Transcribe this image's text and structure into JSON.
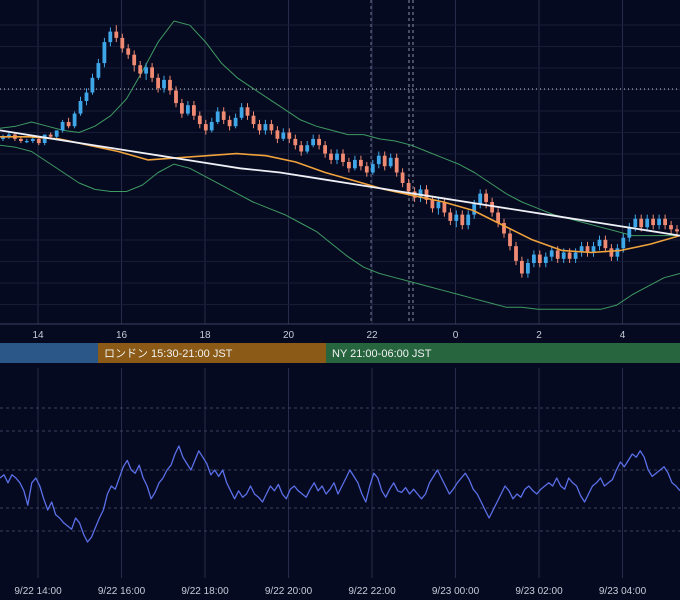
{
  "chart_data": {
    "type": "line",
    "price_panel": {
      "x_ticks": [
        "14",
        "16",
        "18",
        "20",
        "22",
        "0",
        "2",
        "4"
      ],
      "candles": [
        [
          0.07,
          0.06,
          0.08,
          0.05,
          true
        ],
        [
          0.07,
          0.08,
          0.09,
          0.06,
          true
        ],
        [
          0.08,
          0.06,
          0.09,
          0.05,
          false
        ],
        [
          0.06,
          0.05,
          0.07,
          0.04,
          false
        ],
        [
          0.05,
          0.05,
          0.06,
          0.04,
          true
        ],
        [
          0.05,
          0.06,
          0.07,
          0.04,
          true
        ],
        [
          0.06,
          0.04,
          0.07,
          0.03,
          false
        ],
        [
          0.04,
          0.08,
          0.08,
          0.03,
          true
        ],
        [
          0.08,
          0.07,
          0.09,
          0.06,
          false
        ],
        [
          0.07,
          0.1,
          0.1,
          0.06,
          true
        ],
        [
          0.1,
          0.14,
          0.15,
          0.09,
          true
        ],
        [
          0.14,
          0.12,
          0.16,
          0.11,
          false
        ],
        [
          0.12,
          0.18,
          0.19,
          0.11,
          true
        ],
        [
          0.18,
          0.24,
          0.26,
          0.17,
          true
        ],
        [
          0.24,
          0.28,
          0.3,
          0.22,
          true
        ],
        [
          0.28,
          0.35,
          0.37,
          0.27,
          true
        ],
        [
          0.35,
          0.42,
          0.44,
          0.34,
          true
        ],
        [
          0.42,
          0.52,
          0.54,
          0.4,
          true
        ],
        [
          0.52,
          0.57,
          0.59,
          0.5,
          true
        ],
        [
          0.57,
          0.54,
          0.6,
          0.52,
          false
        ],
        [
          0.54,
          0.49,
          0.56,
          0.47,
          false
        ],
        [
          0.49,
          0.46,
          0.51,
          0.44,
          false
        ],
        [
          0.46,
          0.41,
          0.48,
          0.38,
          false
        ],
        [
          0.41,
          0.37,
          0.43,
          0.35,
          false
        ],
        [
          0.37,
          0.4,
          0.42,
          0.34,
          true
        ],
        [
          0.4,
          0.35,
          0.42,
          0.33,
          false
        ],
        [
          0.35,
          0.3,
          0.37,
          0.28,
          false
        ],
        [
          0.3,
          0.34,
          0.36,
          0.28,
          true
        ],
        [
          0.34,
          0.29,
          0.36,
          0.27,
          false
        ],
        [
          0.29,
          0.23,
          0.31,
          0.21,
          false
        ],
        [
          0.23,
          0.18,
          0.25,
          0.16,
          false
        ],
        [
          0.18,
          0.22,
          0.24,
          0.17,
          true
        ],
        [
          0.22,
          0.17,
          0.24,
          0.15,
          false
        ],
        [
          0.17,
          0.13,
          0.19,
          0.11,
          false
        ],
        [
          0.13,
          0.1,
          0.15,
          0.08,
          false
        ],
        [
          0.1,
          0.14,
          0.16,
          0.09,
          true
        ],
        [
          0.14,
          0.19,
          0.21,
          0.13,
          true
        ],
        [
          0.19,
          0.15,
          0.21,
          0.13,
          false
        ],
        [
          0.15,
          0.12,
          0.17,
          0.1,
          false
        ],
        [
          0.12,
          0.16,
          0.18,
          0.11,
          true
        ],
        [
          0.16,
          0.21,
          0.23,
          0.15,
          true
        ],
        [
          0.21,
          0.17,
          0.23,
          0.15,
          false
        ],
        [
          0.17,
          0.13,
          0.19,
          0.11,
          false
        ],
        [
          0.13,
          0.1,
          0.15,
          0.08,
          false
        ],
        [
          0.1,
          0.13,
          0.15,
          0.08,
          true
        ],
        [
          0.13,
          0.1,
          0.15,
          0.08,
          false
        ],
        [
          0.1,
          0.06,
          0.12,
          0.04,
          false
        ],
        [
          0.06,
          0.09,
          0.11,
          0.05,
          true
        ],
        [
          0.09,
          0.06,
          0.11,
          0.04,
          false
        ],
        [
          0.06,
          0.03,
          0.08,
          0.01,
          false
        ],
        [
          0.03,
          0.0,
          0.05,
          -0.02,
          false
        ],
        [
          0.0,
          0.03,
          0.05,
          -0.01,
          true
        ],
        [
          0.03,
          0.06,
          0.08,
          0.02,
          true
        ],
        [
          0.06,
          0.03,
          0.08,
          0.01,
          false
        ],
        [
          0.03,
          -0.01,
          0.05,
          -0.03,
          false
        ],
        [
          -0.01,
          -0.04,
          0.01,
          -0.06,
          false
        ],
        [
          -0.04,
          -0.01,
          0.01,
          -0.06,
          true
        ],
        [
          -0.01,
          -0.05,
          0.01,
          -0.07,
          false
        ],
        [
          -0.05,
          -0.08,
          -0.03,
          -0.1,
          false
        ],
        [
          -0.08,
          -0.04,
          -0.02,
          -0.09,
          true
        ],
        [
          -0.04,
          -0.07,
          -0.02,
          -0.09,
          false
        ],
        [
          -0.07,
          -0.1,
          -0.05,
          -0.12,
          false
        ],
        [
          -0.1,
          -0.06,
          -0.04,
          -0.11,
          true
        ],
        [
          -0.06,
          -0.02,
          0.0,
          -0.08,
          true
        ],
        [
          -0.02,
          -0.07,
          0.0,
          -0.09,
          false
        ],
        [
          -0.07,
          -0.03,
          -0.01,
          -0.08,
          true
        ],
        [
          -0.03,
          -0.1,
          -0.01,
          -0.12,
          false
        ],
        [
          -0.1,
          -0.15,
          -0.08,
          -0.17,
          false
        ],
        [
          -0.15,
          -0.19,
          -0.13,
          -0.21,
          false
        ],
        [
          -0.19,
          -0.22,
          -0.17,
          -0.24,
          false
        ],
        [
          -0.22,
          -0.18,
          -0.16,
          -0.24,
          true
        ],
        [
          -0.18,
          -0.23,
          -0.16,
          -0.25,
          false
        ],
        [
          -0.23,
          -0.27,
          -0.21,
          -0.29,
          false
        ],
        [
          -0.27,
          -0.24,
          -0.22,
          -0.3,
          true
        ],
        [
          -0.24,
          -0.29,
          -0.22,
          -0.31,
          false
        ],
        [
          -0.29,
          -0.33,
          -0.27,
          -0.35,
          false
        ],
        [
          -0.33,
          -0.3,
          -0.28,
          -0.36,
          true
        ],
        [
          -0.3,
          -0.35,
          -0.28,
          -0.37,
          false
        ],
        [
          -0.35,
          -0.3,
          -0.28,
          -0.37,
          true
        ],
        [
          -0.3,
          -0.25,
          -0.23,
          -0.32,
          true
        ],
        [
          -0.25,
          -0.2,
          -0.18,
          -0.27,
          true
        ],
        [
          -0.2,
          -0.24,
          -0.18,
          -0.27,
          false
        ],
        [
          -0.24,
          -0.29,
          -0.22,
          -0.31,
          false
        ],
        [
          -0.29,
          -0.34,
          -0.27,
          -0.36,
          false
        ],
        [
          -0.34,
          -0.39,
          -0.32,
          -0.41,
          false
        ],
        [
          -0.39,
          -0.45,
          -0.37,
          -0.47,
          false
        ],
        [
          -0.45,
          -0.52,
          -0.43,
          -0.54,
          false
        ],
        [
          -0.52,
          -0.58,
          -0.5,
          -0.6,
          false
        ],
        [
          -0.58,
          -0.53,
          -0.51,
          -0.6,
          true
        ],
        [
          -0.53,
          -0.49,
          -0.47,
          -0.55,
          true
        ],
        [
          -0.49,
          -0.53,
          -0.47,
          -0.55,
          false
        ],
        [
          -0.53,
          -0.5,
          -0.48,
          -0.55,
          true
        ],
        [
          -0.5,
          -0.47,
          -0.45,
          -0.52,
          true
        ],
        [
          -0.47,
          -0.51,
          -0.45,
          -0.53,
          false
        ],
        [
          -0.51,
          -0.48,
          -0.46,
          -0.53,
          true
        ],
        [
          -0.48,
          -0.51,
          -0.46,
          -0.53,
          false
        ],
        [
          -0.51,
          -0.48,
          -0.46,
          -0.53,
          true
        ],
        [
          -0.48,
          -0.45,
          -0.43,
          -0.5,
          true
        ],
        [
          -0.45,
          -0.48,
          -0.43,
          -0.5,
          false
        ],
        [
          -0.48,
          -0.45,
          -0.43,
          -0.5,
          true
        ],
        [
          -0.45,
          -0.42,
          -0.4,
          -0.47,
          true
        ],
        [
          -0.42,
          -0.46,
          -0.4,
          -0.48,
          false
        ],
        [
          -0.46,
          -0.5,
          -0.44,
          -0.52,
          false
        ],
        [
          -0.5,
          -0.46,
          -0.44,
          -0.52,
          true
        ],
        [
          -0.46,
          -0.41,
          -0.39,
          -0.48,
          true
        ],
        [
          -0.41,
          -0.36,
          -0.34,
          -0.43,
          true
        ],
        [
          -0.36,
          -0.32,
          -0.3,
          -0.38,
          true
        ],
        [
          -0.32,
          -0.36,
          -0.3,
          -0.38,
          false
        ],
        [
          -0.36,
          -0.32,
          -0.3,
          -0.38,
          true
        ],
        [
          -0.32,
          -0.35,
          -0.3,
          -0.37,
          false
        ],
        [
          -0.35,
          -0.32,
          -0.3,
          -0.37,
          true
        ],
        [
          -0.32,
          -0.35,
          -0.3,
          -0.37,
          false
        ],
        [
          -0.35,
          -0.37,
          -0.33,
          -0.39,
          false
        ],
        [
          -0.37,
          -0.38,
          -0.35,
          -0.4,
          false
        ]
      ],
      "sma_white": [
        0.1,
        0.07,
        0.04,
        0.01,
        -0.02,
        -0.05,
        -0.08,
        -0.1,
        -0.13,
        -0.16,
        -0.19,
        -0.22,
        -0.25,
        -0.28,
        -0.31,
        -0.34,
        -0.37,
        -0.4
      ],
      "sma_orange": [
        0.07,
        0.07,
        0.06,
        0.03,
        0.0,
        -0.04,
        -0.03,
        -0.02,
        -0.01,
        -0.02,
        -0.05,
        -0.1,
        -0.14,
        -0.18,
        -0.21,
        -0.24,
        -0.28,
        -0.35,
        -0.42,
        -0.47,
        -0.48,
        -0.47,
        -0.44,
        -0.4
      ],
      "bb_upper": [
        0.11,
        0.12,
        0.14,
        0.12,
        0.1,
        0.09,
        0.12,
        0.17,
        0.25,
        0.38,
        0.52,
        0.62,
        0.6,
        0.52,
        0.42,
        0.35,
        0.3,
        0.25,
        0.2,
        0.15,
        0.12,
        0.1,
        0.08,
        0.08,
        0.06,
        0.05,
        0.03,
        0.0,
        -0.03,
        -0.06,
        -0.1,
        -0.15,
        -0.2,
        -0.24,
        -0.27,
        -0.3,
        -0.32,
        -0.34,
        -0.36,
        -0.38,
        -0.4,
        -0.4,
        -0.4,
        -0.4
      ],
      "bb_lower": [
        0.03,
        0.02,
        0.0,
        -0.05,
        -0.1,
        -0.15,
        -0.18,
        -0.19,
        -0.19,
        -0.16,
        -0.1,
        -0.06,
        -0.08,
        -0.12,
        -0.16,
        -0.2,
        -0.24,
        -0.27,
        -0.3,
        -0.34,
        -0.38,
        -0.44,
        -0.5,
        -0.55,
        -0.58,
        -0.6,
        -0.62,
        -0.64,
        -0.66,
        -0.68,
        -0.7,
        -0.72,
        -0.74,
        -0.74,
        -0.75,
        -0.75,
        -0.75,
        -0.75,
        -0.75,
        -0.73,
        -0.68,
        -0.64,
        -0.6,
        -0.58
      ]
    },
    "session_bar": [
      {
        "label": "",
        "color": "#2a5788"
      },
      {
        "label": "ロンドン 15:30-21:00 JST",
        "color": "#8a5a16"
      },
      {
        "label": "NY 21:00-06:00 JST",
        "color": "#27653f"
      }
    ],
    "oscillator": {
      "x_ticks": [
        "9/22 14:00",
        "9/22 16:00",
        "9/22 18:00",
        "9/22 20:00",
        "9/22 22:00",
        "9/23 00:00",
        "9/23 02:00",
        "9/23 04:00"
      ],
      "values": [
        55,
        57,
        52,
        57,
        55,
        52,
        47,
        38,
        52,
        55,
        50,
        42,
        35,
        40,
        32,
        30,
        27,
        25,
        23,
        30,
        27,
        20,
        15,
        18,
        24,
        30,
        35,
        45,
        50,
        48,
        55,
        62,
        66,
        60,
        58,
        63,
        55,
        50,
        42,
        46,
        52,
        55,
        60,
        63,
        70,
        75,
        68,
        64,
        60,
        66,
        72,
        68,
        64,
        57,
        60,
        56,
        60,
        52,
        47,
        42,
        47,
        43,
        45,
        50,
        45,
        43,
        40,
        45,
        50,
        47,
        51,
        45,
        42,
        48,
        50,
        47,
        45,
        43,
        48,
        52,
        47,
        50,
        45,
        48,
        52,
        45,
        50,
        55,
        60,
        56,
        52,
        45,
        40,
        50,
        58,
        55,
        47,
        43,
        48,
        52,
        47,
        46,
        49,
        45,
        48,
        45,
        42,
        45,
        52,
        56,
        60,
        55,
        50,
        45,
        48,
        52,
        55,
        58,
        54,
        48,
        45,
        40,
        35,
        30,
        35,
        40,
        45,
        50,
        47,
        42,
        45,
        43,
        48,
        50,
        47,
        45,
        48,
        50,
        52,
        50,
        55,
        50,
        48,
        55,
        52,
        50,
        44,
        40,
        45,
        50,
        52,
        55,
        50,
        52,
        54,
        60,
        65,
        62,
        66,
        70,
        68,
        72,
        68,
        60,
        56,
        58,
        60,
        62,
        58,
        52,
        50,
        47
      ]
    }
  }
}
